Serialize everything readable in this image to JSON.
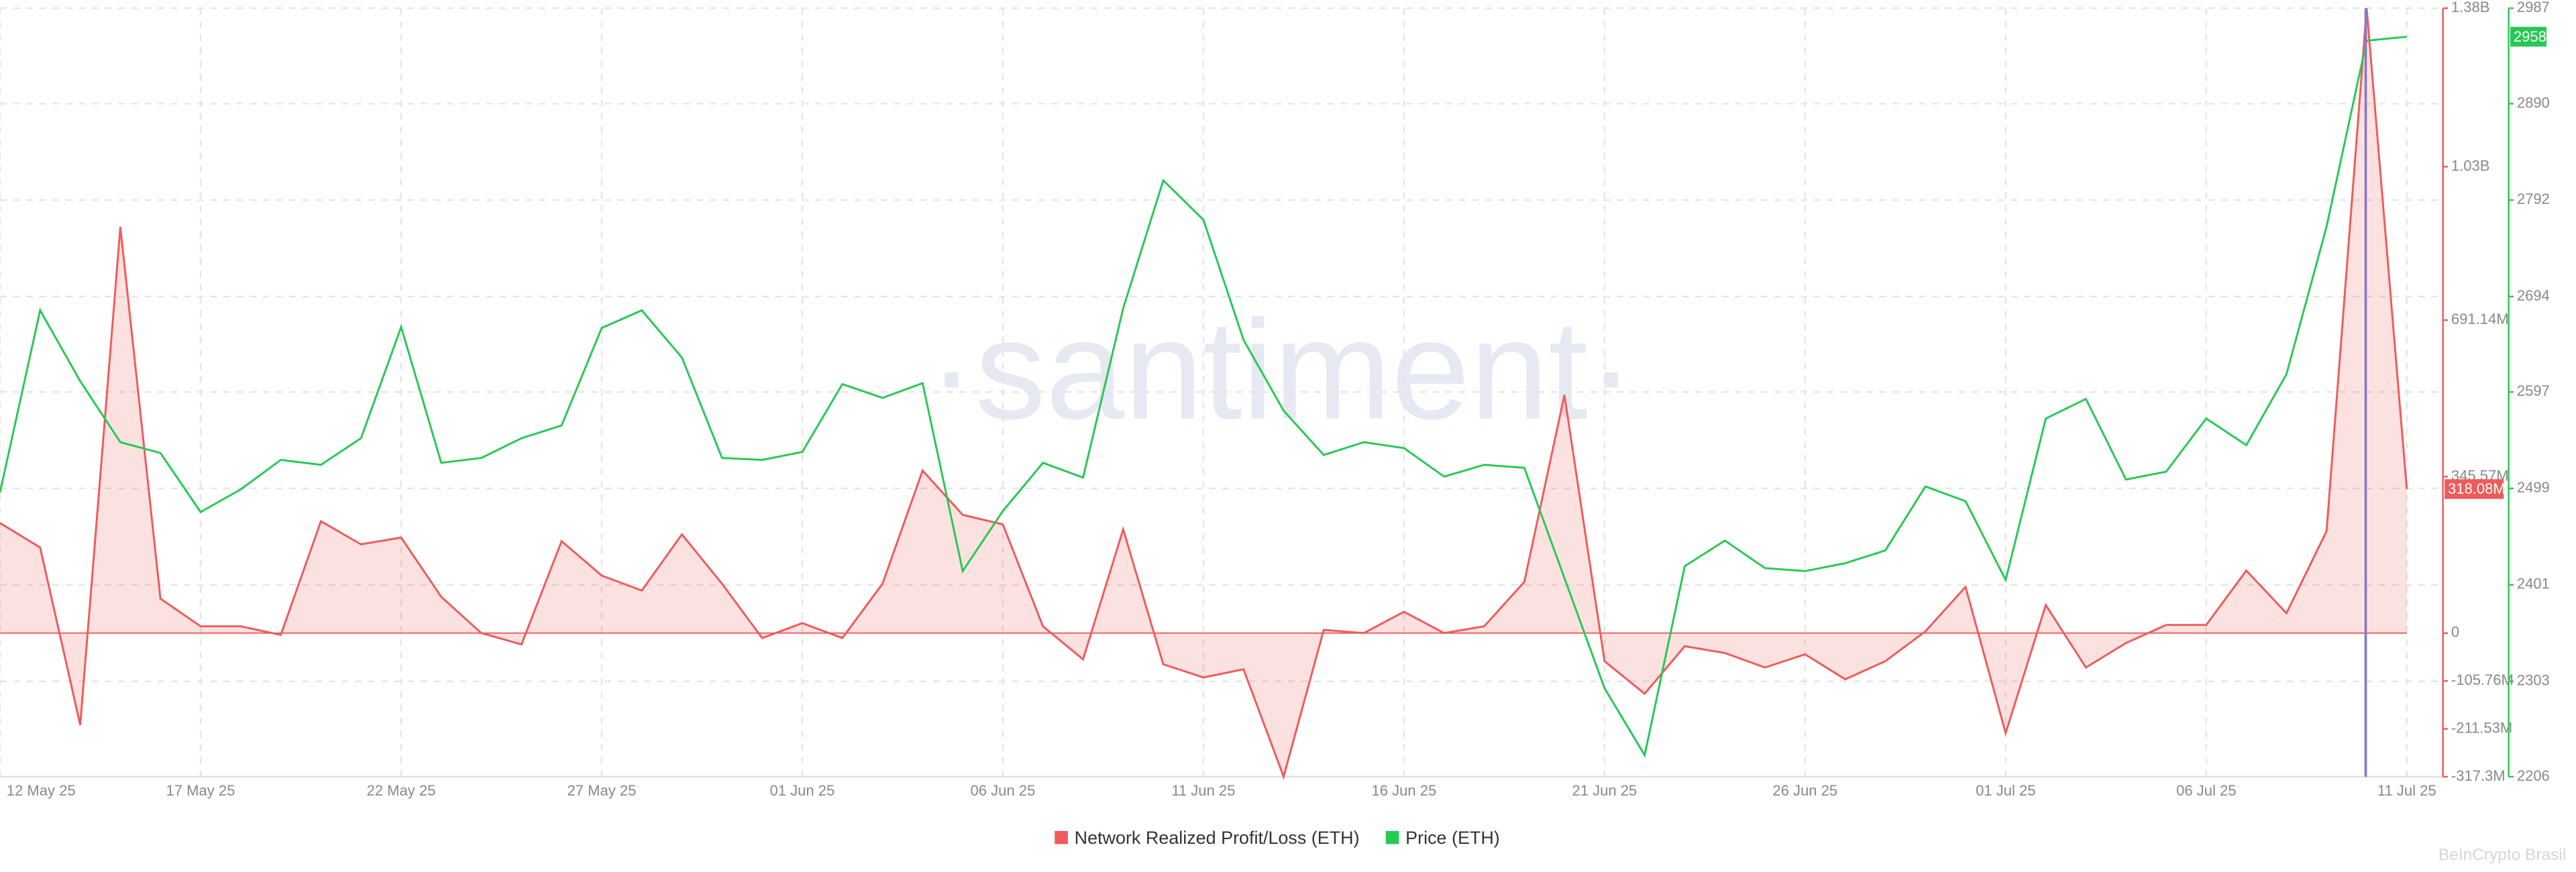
{
  "chart_data": {
    "type": "line",
    "watermark": "·santiment·",
    "credit": "BeInCrypto Brasil",
    "categories": [
      "12 May 25",
      null,
      null,
      null,
      null,
      "17 May 25",
      null,
      null,
      null,
      null,
      "22 May 25",
      null,
      null,
      null,
      null,
      "27 May 25",
      null,
      null,
      null,
      null,
      "01 Jun 25",
      null,
      null,
      null,
      null,
      "06 Jun 25",
      null,
      null,
      null,
      null,
      "11 Jun 25",
      null,
      null,
      null,
      null,
      "16 Jun 25",
      null,
      null,
      null,
      null,
      "21 Jun 25",
      null,
      null,
      null,
      null,
      "26 Jun 25",
      null,
      null,
      null,
      null,
      "01 Jul 25",
      null,
      null,
      null,
      null,
      "06 Jul 25",
      null,
      null,
      null,
      null,
      "11 Jul 25"
    ],
    "series": [
      {
        "name": "Network Realized Profit/Loss (ETH)",
        "color": "#f05a5a",
        "axis": "y",
        "values": [
          243000000,
          189000000,
          -203000000,
          897000000,
          76000000,
          15000000,
          15000000,
          -4000000,
          247000000,
          196000000,
          211000000,
          80000000,
          0,
          -25000000,
          203000000,
          127000000,
          94000000,
          218000000,
          109000000,
          -11000000,
          22000000,
          -11000000,
          109000000,
          359000000,
          261000000,
          240000000,
          15000000,
          -58000000,
          229000000,
          -69000000,
          -98000000,
          -80000000,
          -317000000,
          7000000,
          0,
          47000000,
          0,
          15000000,
          113000000,
          526000000,
          -62000000,
          -134000000,
          -29000000,
          -44000000,
          -76000000,
          -47000000,
          -102000000,
          -62000000,
          4000000,
          102000000,
          -221000000,
          62000000,
          -76000000,
          -22000000,
          18000000,
          18000000,
          138000000,
          44000000,
          225000000,
          1380000000,
          318080000
        ],
        "value_labels": {
          "60": "318.08M"
        }
      },
      {
        "name": "Price (ETH)",
        "color": "#26c953",
        "axis": "y2",
        "values": [
          2495,
          2680,
          2608,
          2546,
          2535,
          2475,
          2498,
          2528,
          2523,
          2550,
          2663,
          2525,
          2530,
          2550,
          2563,
          2662,
          2680,
          2632,
          2530,
          2528,
          2536,
          2605,
          2591,
          2606,
          2415,
          2476,
          2525,
          2510,
          2682,
          2812,
          2772,
          2650,
          2578,
          2533,
          2546,
          2540,
          2511,
          2523,
          2520,
          2408,
          2296,
          2228,
          2420,
          2446,
          2418,
          2415,
          2423,
          2436,
          2501,
          2486,
          2406,
          2570,
          2590,
          2508,
          2516,
          2570,
          2543,
          2615,
          2765,
          2954,
          2958
        ],
        "value_labels": {
          "60": "2958"
        }
      }
    ],
    "ylim": [
      -317300000,
      1380000000
    ],
    "yticks": [
      {
        "value": -317300000,
        "label": "-317.3M"
      },
      {
        "value": -211530000,
        "label": "-211.53M"
      },
      {
        "value": -105760000,
        "label": "-105.76M"
      },
      0,
      {
        "value": 345570000,
        "label": "345.57M"
      },
      {
        "value": 691140000,
        "label": "691.14M"
      },
      {
        "value": 1030000000,
        "label": "1.03B"
      },
      {
        "value": 1380000000,
        "label": "1.38B"
      }
    ],
    "y2lim": [
      2206,
      2987
    ],
    "y2ticks": [
      2206,
      2303,
      2401,
      2499,
      2597,
      2694,
      2792,
      2890,
      2987
    ],
    "grid": true,
    "legend": "bottom"
  }
}
